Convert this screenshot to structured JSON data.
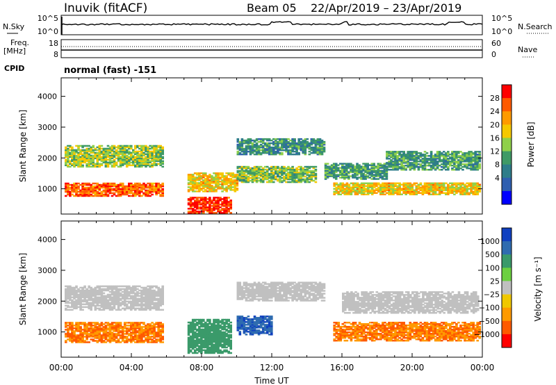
{
  "header": {
    "station": "Inuvik (fitACF)",
    "beam": "Beam 05",
    "dates": "22/Apr/2019 – 23/Apr/2019"
  },
  "nsky": {
    "left_label": "N.Sky",
    "left_top": "10^5",
    "left_bottom": "10^0",
    "right_top": "10^5",
    "right_bottom": "10^0",
    "right_label": "N.Search"
  },
  "freq": {
    "label_line1": "Freq.",
    "label_line2": "[MHz]",
    "left_top": "18",
    "left_bottom": "8",
    "right_top": "60",
    "right_bottom": "0",
    "right_label": "Nave"
  },
  "cpid": {
    "label": "CPID",
    "value": "normal (fast) -151"
  },
  "chart_data": [
    {
      "type": "heatmap",
      "name": "power",
      "ylabel": "Slant Range [km]",
      "xlabel": "Time UT",
      "x_ticks": [
        "00:00",
        "04:00",
        "08:00",
        "12:00",
        "16:00",
        "20:00",
        "00:00"
      ],
      "y_ticks": [
        1000,
        2000,
        3000,
        4000
      ],
      "ylim": [
        180,
        4600
      ],
      "xlim_hours": [
        0,
        24
      ],
      "colorbar": {
        "label": "Power [dB]",
        "ticks": [
          "28",
          "24",
          "20",
          "16",
          "12",
          "8",
          "4"
        ],
        "colors": [
          "#ff0000",
          "#ff5a00",
          "#ff9a00",
          "#f5c800",
          "#8fd04a",
          "#3f9a66",
          "#2e7d8a",
          "#2f5fb0",
          "#0000ff"
        ]
      },
      "bands": [
        {
          "t0": 0.2,
          "t1": 5.8,
          "r0": 1700,
          "r1": 2400,
          "level": 16
        },
        {
          "t0": 0.2,
          "t1": 5.8,
          "r0": 750,
          "r1": 1200,
          "level": 26
        },
        {
          "t0": 7.2,
          "t1": 9.6,
          "r0": 200,
          "r1": 700,
          "level": 29
        },
        {
          "t0": 7.2,
          "t1": 10.0,
          "r0": 900,
          "r1": 1500,
          "level": 20
        },
        {
          "t0": 10.0,
          "t1": 14.5,
          "r0": 1200,
          "r1": 1700,
          "level": 15
        },
        {
          "t0": 10.0,
          "t1": 15.0,
          "r0": 2100,
          "r1": 2600,
          "level": 11
        },
        {
          "t0": 15.0,
          "t1": 18.5,
          "r0": 1300,
          "r1": 1800,
          "level": 12
        },
        {
          "t0": 15.5,
          "t1": 23.8,
          "r0": 800,
          "r1": 1200,
          "level": 20
        },
        {
          "t0": 18.5,
          "t1": 23.8,
          "r0": 1600,
          "r1": 2200,
          "level": 12
        }
      ]
    },
    {
      "type": "heatmap",
      "name": "velocity",
      "ylabel": "Slant Range [km]",
      "xlabel": "Time UT",
      "x_ticks": [
        "00:00",
        "04:00",
        "08:00",
        "12:00",
        "16:00",
        "20:00",
        "00:00"
      ],
      "y_ticks": [
        1000,
        2000,
        3000,
        4000
      ],
      "ylim": [
        180,
        4600
      ],
      "xlim_hours": [
        0,
        24
      ],
      "colorbar": {
        "label": "Velocity [m s⁻¹]",
        "ticks": [
          "1000",
          "500",
          "100",
          "25",
          "−25",
          "−100",
          "−500",
          "−1000"
        ],
        "colors": [
          "#1040c0",
          "#2f6cb0",
          "#3a9a6a",
          "#6cd040",
          "#c0c0c0",
          "#f0c800",
          "#ff9a00",
          "#ff5a00",
          "#ff0000"
        ]
      },
      "bands": [
        {
          "t0": 0.2,
          "t1": 5.8,
          "r0": 1700,
          "r1": 2500,
          "level": 0
        },
        {
          "t0": 0.2,
          "t1": 5.8,
          "r0": 650,
          "r1": 1300,
          "level": -300
        },
        {
          "t0": 7.2,
          "t1": 9.6,
          "r0": 300,
          "r1": 1400,
          "level": 150
        },
        {
          "t0": 10.0,
          "t1": 12.0,
          "r0": 900,
          "r1": 1500,
          "level": 700
        },
        {
          "t0": 10.0,
          "t1": 15.0,
          "r0": 2000,
          "r1": 2600,
          "level": 0
        },
        {
          "t0": 15.5,
          "t1": 23.8,
          "r0": 700,
          "r1": 1300,
          "level": -300
        },
        {
          "t0": 16.0,
          "t1": 23.8,
          "r0": 1600,
          "r1": 2300,
          "level": 0
        }
      ]
    }
  ]
}
